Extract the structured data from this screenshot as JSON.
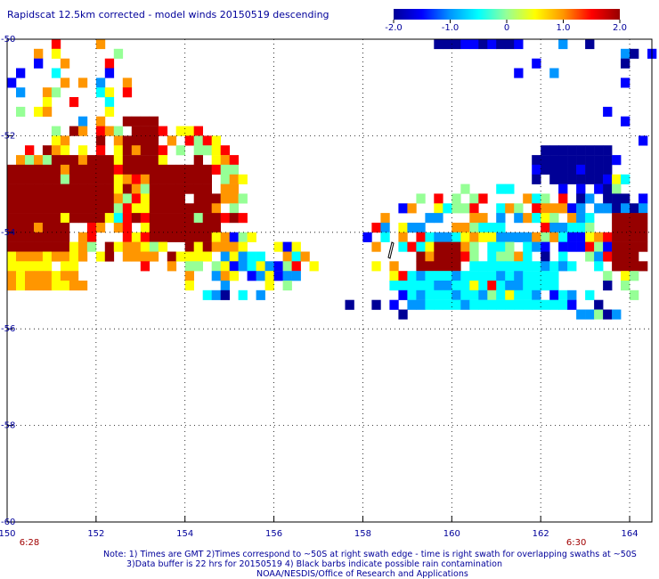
{
  "chart_data": {
    "type": "heatmap",
    "title": "Rapidscat 12.5km corrected - model winds 20150519 descending",
    "xlim": [
      150,
      164.5
    ],
    "ylim": [
      -60,
      -50
    ],
    "x_ticks": [
      "150",
      "152",
      "154",
      "156",
      "158",
      "160",
      "162",
      "164"
    ],
    "y_ticks": [
      "-50",
      "-52",
      "-54",
      "-56",
      "-58",
      "-60"
    ],
    "grid": true,
    "colorbar": {
      "range": [
        -2.0,
        2.0
      ],
      "tick_labels": [
        "-2.0",
        "-1.0",
        "0",
        "1.0",
        "2.0"
      ],
      "placement": "top-right"
    },
    "swath_times": [
      {
        "label": "6:28",
        "lon": 150.5
      },
      {
        "label": "6:30",
        "lon": 162.8
      }
    ],
    "approx_regions": [
      {
        "lon_range": [
          150.0,
          151.3
        ],
        "lat_range": [
          -54.5,
          -52.7
        ],
        "value": 2.0
      },
      {
        "lon_range": [
          151.0,
          152.3
        ],
        "lat_range": [
          -53.8,
          -52.5
        ],
        "value": 2.0
      },
      {
        "lon_range": [
          152.6,
          153.4
        ],
        "lat_range": [
          -52.8,
          -51.7
        ],
        "value": 2.0
      },
      {
        "lon_range": [
          153.1,
          154.5
        ],
        "lat_range": [
          -54.2,
          -52.6
        ],
        "value": 2.0
      },
      {
        "lon_range": [
          159.2,
          160.2
        ],
        "lat_range": [
          -54.8,
          -54.2
        ],
        "value": 2.0
      },
      {
        "lon_range": [
          163.6,
          164.4
        ],
        "lat_range": [
          -54.8,
          -53.6
        ],
        "value": 2.0
      },
      {
        "lon_range": [
          150.0,
          151.8
        ],
        "lat_range": [
          -55.2,
          -54.3
        ],
        "value": 0.8
      },
      {
        "lon_range": [
          159.0,
          162.5
        ],
        "lat_range": [
          -55.6,
          -54.7
        ],
        "value": -0.6
      },
      {
        "lon_range": [
          161.8,
          163.5
        ],
        "lat_range": [
          -53.0,
          -52.2
        ],
        "value": -2.0
      },
      {
        "lon_range": [
          159.5,
          161.5
        ],
        "lat_range": [
          -50.3,
          -50.0
        ],
        "value": -1.8
      }
    ]
  },
  "footer": {
    "line1": "Note: 1) Times are GMT 2)Times correspond to ~50S at right swath edge - time is right swath for overlapping swaths at ~50S",
    "line2": "3)Data buffer is 22 hrs for 20150519 4) Black barbs indicate possible rain contamination",
    "line3": "NOAA/NESDIS/Office of Research and Applications"
  },
  "colors": {
    "ramp": [
      "#000096",
      "#0000ff",
      "#0096ff",
      "#00ffff",
      "#96ff96",
      "#ffff00",
      "#ff9600",
      "#ff0000",
      "#960000"
    ],
    "time_label": "#a00000",
    "grid": "#000000"
  }
}
